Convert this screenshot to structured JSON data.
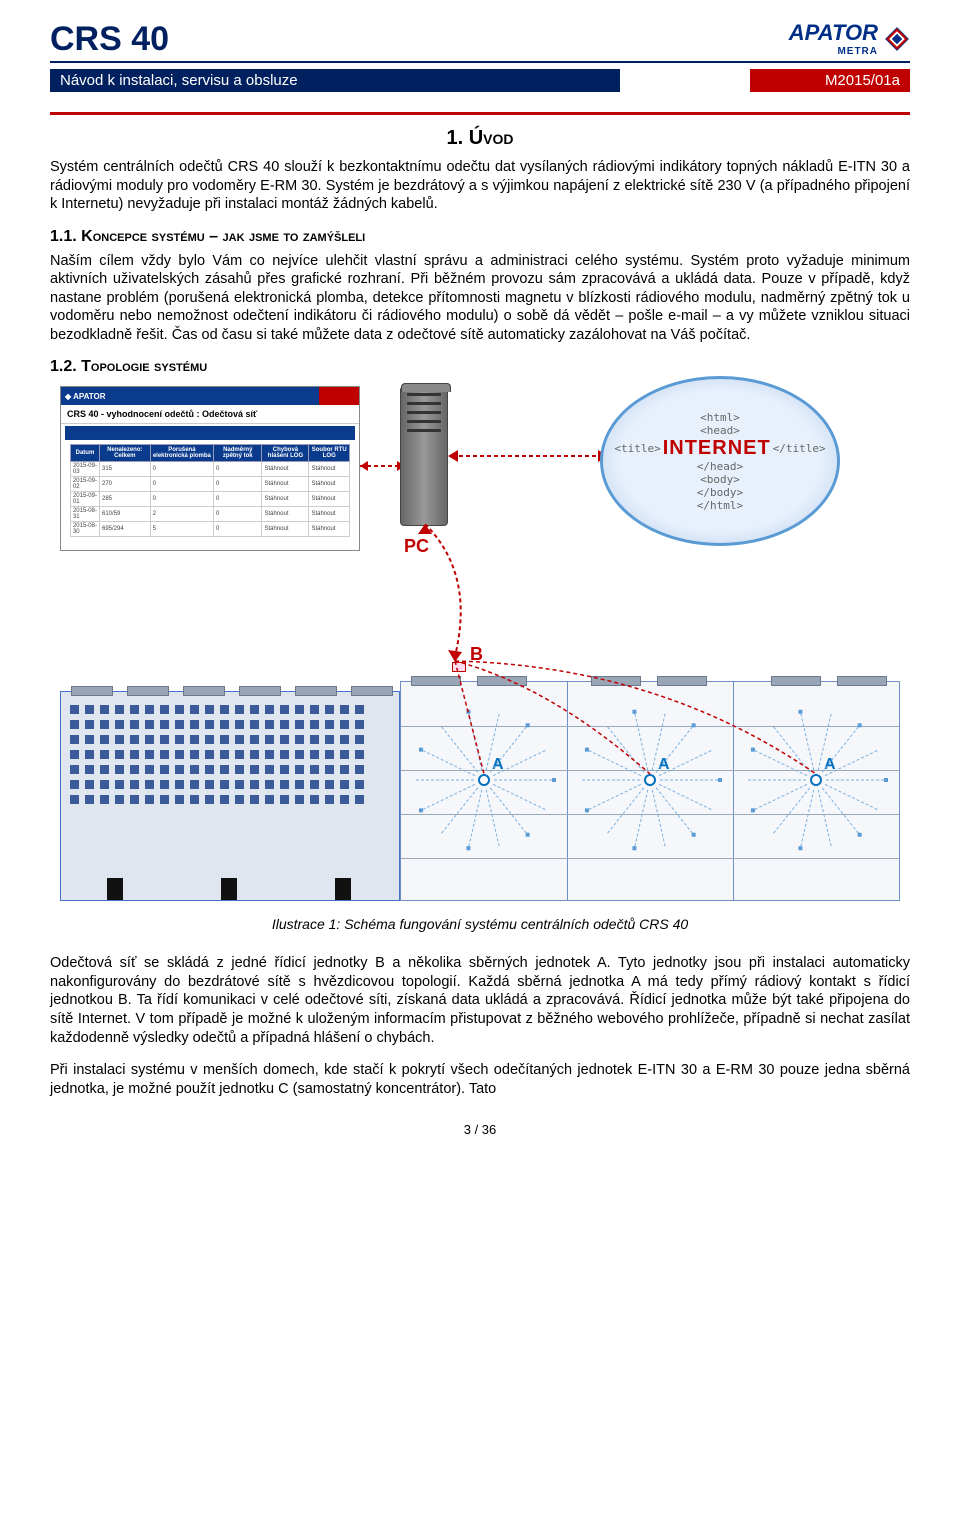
{
  "header": {
    "title": "CRS 40",
    "logo_brand": "APATOR",
    "logo_sub": "METRA"
  },
  "subheader": {
    "left": "Návod k instalaci, servisu a obsluze",
    "right": "M2015/01a"
  },
  "section1": {
    "title": "1. Úvod",
    "intro": "Systém centrálních odečtů CRS 40 slouží k bezkontaktnímu odečtu dat vysílaných rádiovými indikátory topných nákladů E-ITN 30 a rádiovými moduly pro vodoměry E-RM 30. Systém je bezdrátový a s výjimkou napájení z elektrické sítě 230 V (a případného připojení k Internetu) nevyžaduje při instalaci montáž žádných kabelů.",
    "sub11_num": "1.1. ",
    "sub11_title": "Koncepce systému – jak jsme to zamýšleli",
    "para11": "Naším cílem vždy bylo Vám co nejvíce ulehčit vlastní správu a administraci celého systému. Systém proto vyžaduje minimum aktivních uživatelských zásahů přes grafické rozhraní. Při běžném provozu sám zpracovává a ukládá data. Pouze v případě, když nastane problém (porušená elektronická plomba, detekce přítomnosti magnetu v blízkosti rádiového modulu, nadměrný zpětný tok u vodoměru nebo nemožnost odečtení indikátoru či rádiového modulu) o sobě dá vědět – pošle e-mail – a vy můžete vzniklou situaci bezodkladně řešit. Čas od času si také můžete data z odečtové sítě automaticky zazálohovat na Váš počítač.",
    "sub12_num": "1.2. ",
    "sub12_title": "Topologie systému"
  },
  "diagram": {
    "screenshot_title": "CRS 40 - vyhodnocení odečtů : Odečtová síť",
    "pc_label": "PC",
    "internet_tags": [
      "<html>",
      "<head>",
      "<title>",
      "</title>",
      "</head>",
      "<body>",
      "</body>",
      "</html>"
    ],
    "internet_label": "INTERNET",
    "node_b": "B",
    "node_a": "A",
    "table_headers": [
      "Datum",
      "Nenalezeno: Celkem",
      "Porušená elektronická plomba",
      "Nadměrný zpětný tok",
      "Chybová hlášení LOG",
      "Soubor RTU LOG"
    ],
    "table_rows": [
      [
        "2015-09-03",
        "315",
        "0",
        "0",
        "Stáhnout",
        "Stáhnout"
      ],
      [
        "2015-09-02",
        "270",
        "0",
        "0",
        "Stáhnout",
        "Stáhnout"
      ],
      [
        "2015-09-01",
        "285",
        "0",
        "0",
        "Stáhnout",
        "Stáhnout"
      ],
      [
        "2015-08-31",
        "610/59",
        "2",
        "0",
        "Stáhnout",
        "Stáhnout"
      ],
      [
        "2015-08-30",
        "695/294",
        "5",
        "0",
        "Stáhnout",
        "Stáhnout"
      ]
    ],
    "colors": {
      "red": "#c00000",
      "blue": "#0070c0",
      "darkblue": "#002060",
      "building_fill": "#e0e6f0",
      "building_stroke": "#4472c4"
    }
  },
  "caption": "Ilustrace 1: Schéma fungování systému centrálních odečtů CRS 40",
  "para_after1": "Odečtová síť se skládá z jedné řídicí jednotky B a několika sběrných jednotek A. Tyto jednotky jsou při instalaci automaticky nakonfigurovány do bezdrátové sítě s hvězdicovou topologií. Každá sběrná jednotka A má tedy přímý rádiový kontakt s řídicí jednotkou B. Ta řídí komunikaci v celé odečtové síti, získaná data ukládá a zpracovává. Řídicí jednotka může být také připojena do sítě Internet. V tom případě je možné k uloženým informacím přistupovat z běžného webového prohlížeče, případně si nechat zasílat každodenně výsledky odečtů a případná hlášení o chybách.",
  "para_after2": "Při instalaci systému v menších domech, kde stačí k pokrytí všech odečítaných jednotek E-ITN 30 a E-RM 30 pouze jedna sběrná jednotka, je možné použít jednotku C (samostatný koncentrátor). Tato",
  "pagenum": "3 / 36"
}
